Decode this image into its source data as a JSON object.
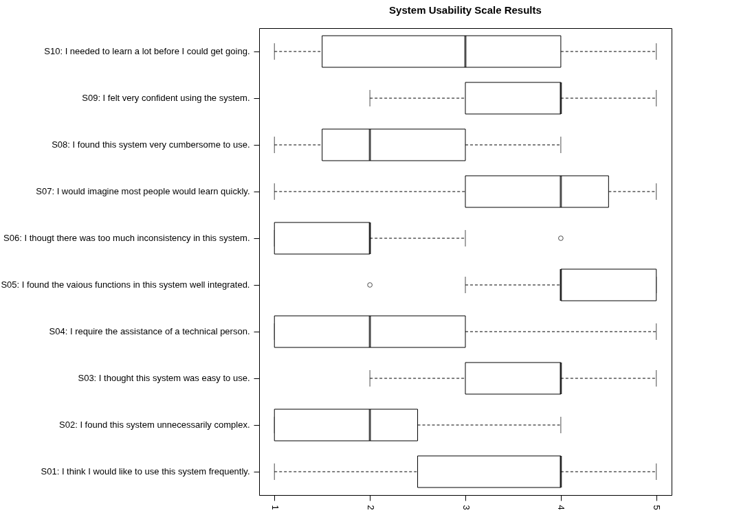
{
  "chart_data": {
    "type": "box",
    "orientation": "horizontal",
    "title": "System Usability Scale Results",
    "categories": [
      "S10: I needed to learn a lot before I could get going.",
      "S09: I felt very confident using the system.",
      "S08: I found this system very cumbersome to use.",
      "S07: I would imagine most people would learn quickly.",
      "S06: I thougt there was too much inconsistency in this system.",
      "S05: I found the vaious functions in this system well integrated.",
      "S04: I require the assistance of a technical person.",
      "S03: I thought this system was easy to use.",
      "S02: I found this system unnecessarily complex.",
      "S01: I think I would like to use this system frequently."
    ],
    "boxes": [
      {
        "low": 1,
        "q1": 1.5,
        "median": 3,
        "q3": 4,
        "high": 5
      },
      {
        "low": 2,
        "q1": 3,
        "median": 4,
        "q3": 4,
        "high": 5
      },
      {
        "low": 1,
        "q1": 1.5,
        "median": 2,
        "q3": 3,
        "high": 4
      },
      {
        "low": 1,
        "q1": 3,
        "median": 4,
        "q3": 4.5,
        "high": 5
      },
      {
        "low": 1,
        "q1": 1,
        "median": 2,
        "q3": 2,
        "high": 3,
        "outliers": [
          4
        ]
      },
      {
        "low": 3,
        "q1": 4,
        "median": 4,
        "q3": 5,
        "high": 5,
        "outliers": [
          2
        ]
      },
      {
        "low": 1,
        "q1": 1,
        "median": 2,
        "q3": 3,
        "high": 5
      },
      {
        "low": 2,
        "q1": 3,
        "median": 4,
        "q3": 4,
        "high": 5
      },
      {
        "low": 1,
        "q1": 1,
        "median": 2,
        "q3": 2.5,
        "high": 4
      },
      {
        "low": 1,
        "q1": 2.5,
        "median": 4,
        "q3": 4,
        "high": 5
      }
    ],
    "xlim": [
      0.84,
      5.16
    ],
    "xticks": [
      1,
      2,
      3,
      4,
      5
    ]
  }
}
